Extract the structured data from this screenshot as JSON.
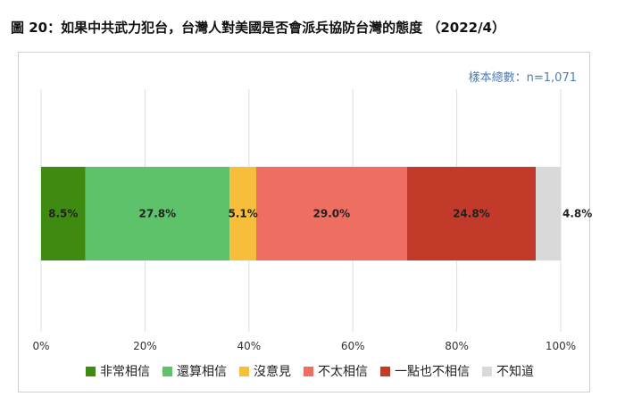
{
  "title": "圖 20：如果中共武力犯台，台灣人對美國是否會派兵協防台灣的態度 （2022/4）",
  "sample_size": "樣本總數：n=1,071",
  "chart_data": {
    "type": "bar",
    "orientation": "horizontal-stacked",
    "xlim": [
      0,
      100
    ],
    "x_ticks": [
      "0%",
      "20%",
      "40%",
      "60%",
      "80%",
      "100%"
    ],
    "grid": true,
    "legend_position": "bottom",
    "series": [
      {
        "name": "非常相信",
        "value": 8.5,
        "label": "8.5%",
        "color": "#3f8b12"
      },
      {
        "name": "還算相信",
        "value": 27.8,
        "label": "27.8%",
        "color": "#5ec26a"
      },
      {
        "name": "沒意見",
        "value": 5.1,
        "label": "5.1%",
        "color": "#f6be3a"
      },
      {
        "name": "不太相信",
        "value": 29.0,
        "label": "29.0%",
        "color": "#ee6e62"
      },
      {
        "name": "一點也不相信",
        "value": 24.8,
        "label": "24.8%",
        "color": "#c23a2a"
      },
      {
        "name": "不知道",
        "value": 4.8,
        "label": "4.8%",
        "color": "#d9d9d9"
      }
    ]
  }
}
